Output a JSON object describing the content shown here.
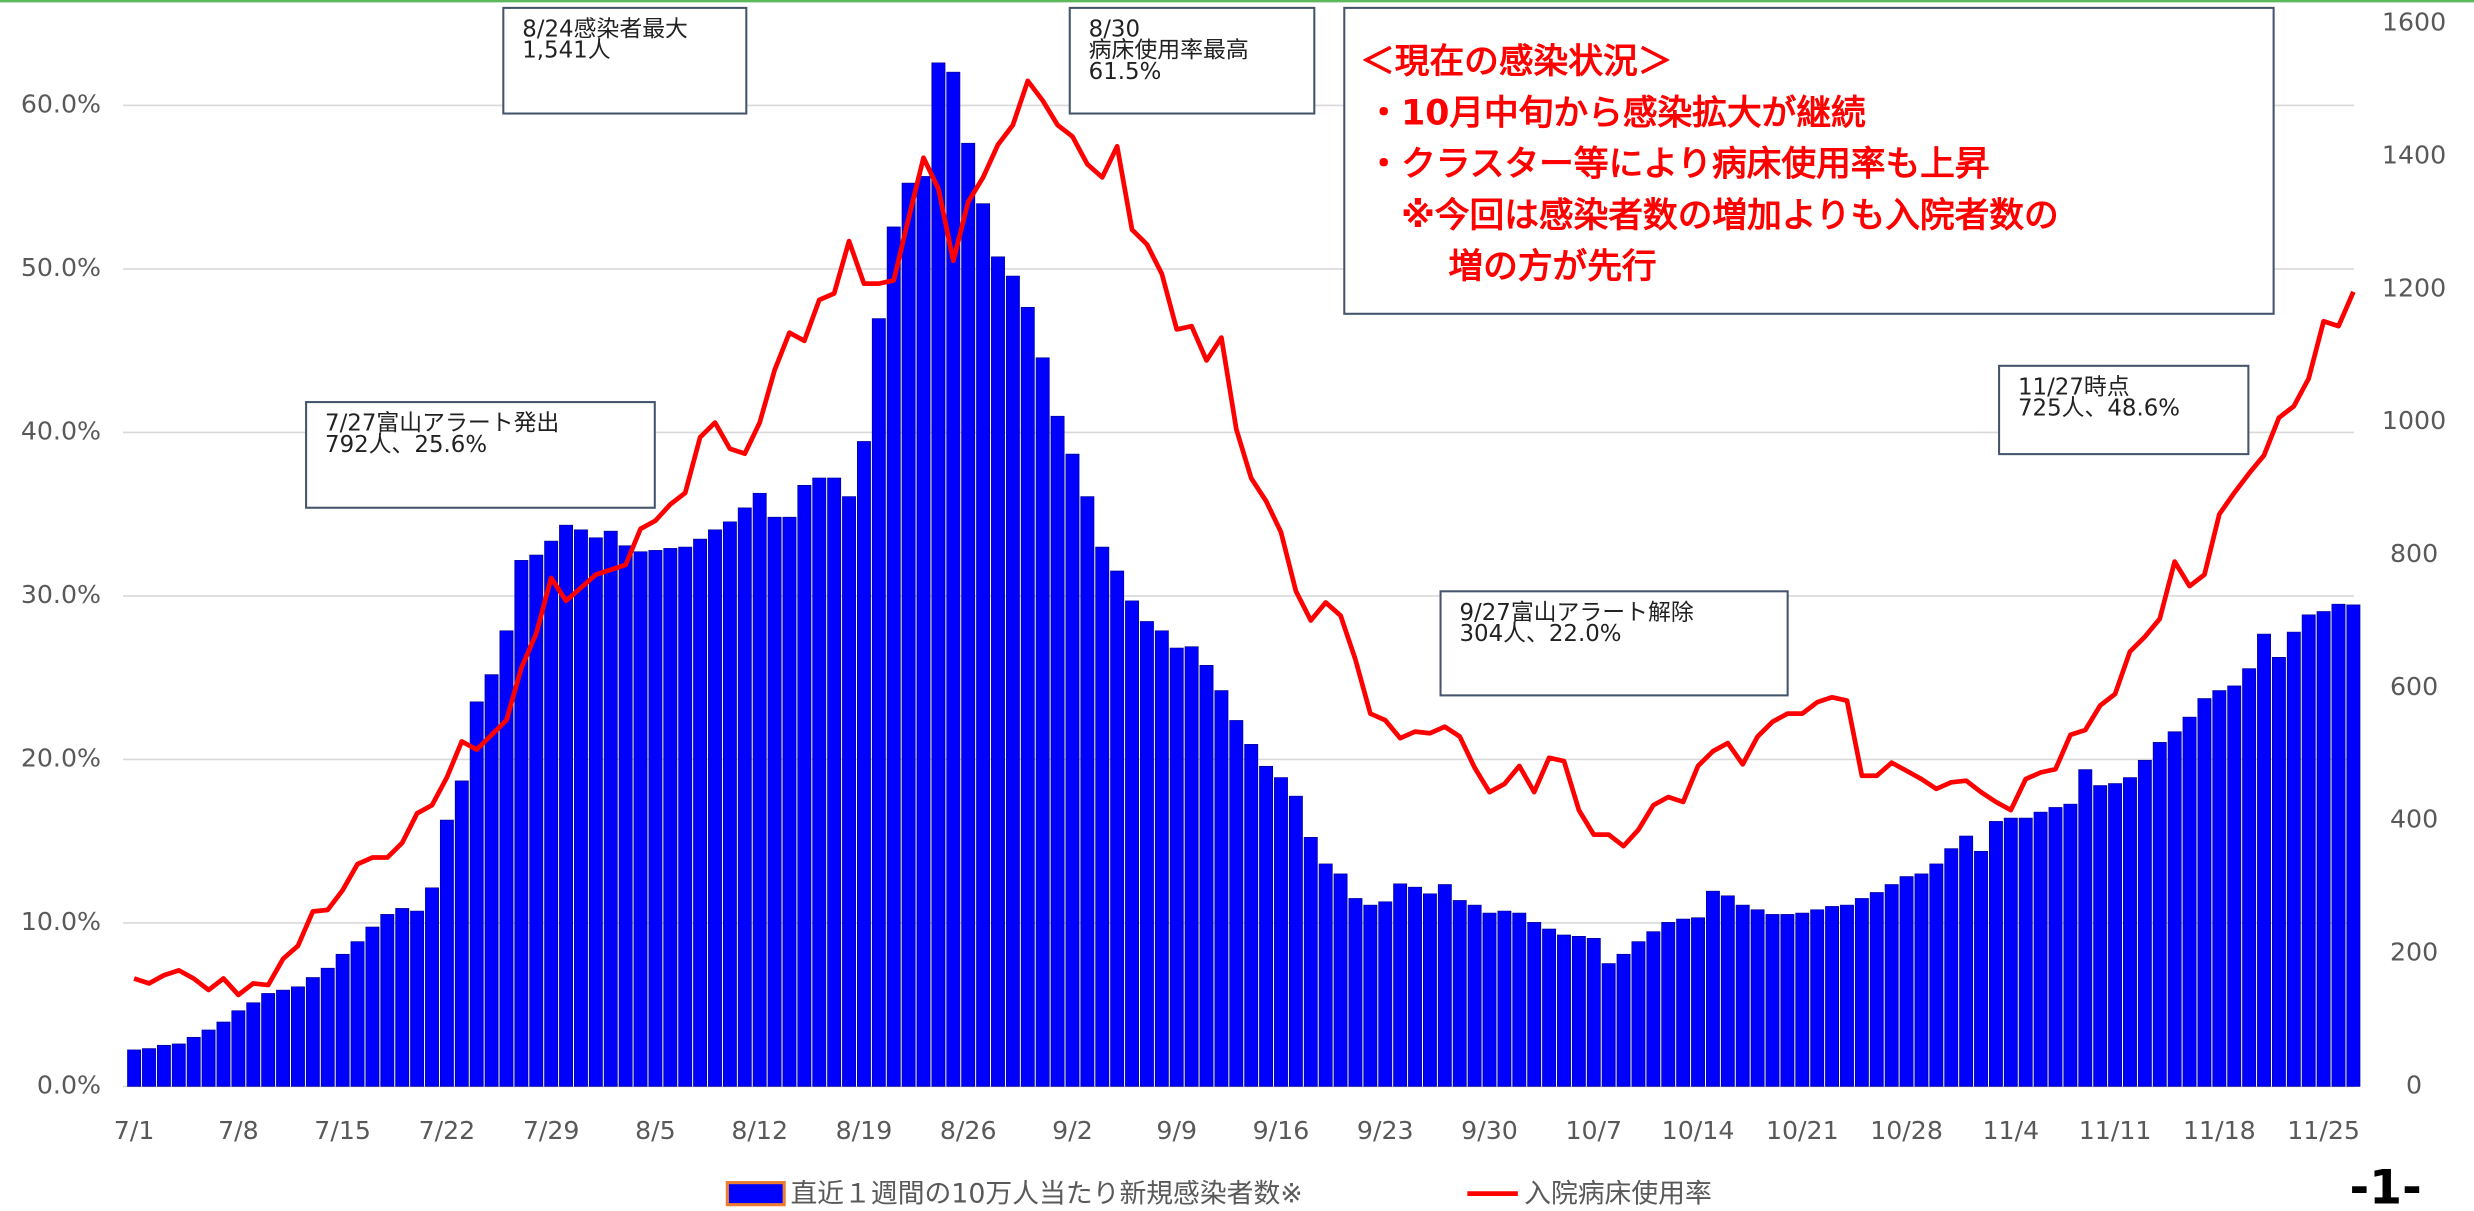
{
  "chart_data": {
    "type": "bar-line",
    "categories": [
      "7/1",
      null,
      null,
      null,
      null,
      null,
      null,
      "7/8",
      null,
      null,
      null,
      null,
      null,
      null,
      "7/15",
      null,
      null,
      null,
      null,
      null,
      null,
      "7/22",
      null,
      null,
      null,
      null,
      null,
      null,
      "7/29",
      null,
      null,
      null,
      null,
      null,
      null,
      "8/5",
      null,
      null,
      null,
      null,
      null,
      null,
      "8/12",
      null,
      null,
      null,
      null,
      null,
      null,
      "8/19",
      null,
      null,
      null,
      null,
      null,
      null,
      "8/26",
      null,
      null,
      null,
      null,
      null,
      null,
      "9/2",
      null,
      null,
      null,
      null,
      null,
      null,
      "9/9",
      null,
      null,
      null,
      null,
      null,
      null,
      "9/16",
      null,
      null,
      null,
      null,
      null,
      null,
      "9/23",
      null,
      null,
      null,
      null,
      null,
      null,
      "9/30",
      null,
      null,
      null,
      null,
      null,
      null,
      "10/7",
      null,
      null,
      null,
      null,
      null,
      null,
      "10/14",
      null,
      null,
      null,
      null,
      null,
      null,
      "10/21",
      null,
      null,
      null,
      null,
      null,
      null,
      "10/28",
      null,
      null,
      null,
      null,
      null,
      null,
      "11/4",
      null,
      null,
      null,
      null,
      null,
      null,
      "11/11",
      null,
      null,
      null,
      null,
      null,
      null,
      "11/18",
      null,
      null,
      null,
      null,
      null,
      null,
      "11/25",
      null,
      null
    ],
    "series": [
      {
        "name": "直近１週間の10万人当たり新規感染者数※",
        "kind": "bar",
        "axis": "y2",
        "color": "#0000ff",
        "values": [
          55,
          57,
          62,
          64,
          74,
          85,
          97,
          114,
          126,
          140,
          145,
          150,
          164,
          178,
          199,
          218,
          240,
          259,
          268,
          264,
          299,
          401,
          460,
          579,
          620,
          686,
          792,
          800,
          821,
          845,
          838,
          826,
          836,
          814,
          805,
          807,
          810,
          812,
          824,
          838,
          850,
          871,
          893,
          857,
          857,
          905,
          916,
          916,
          888,
          971,
          1156,
          1294,
          1360,
          1370,
          1541,
          1527,
          1420,
          1329,
          1249,
          1220,
          1173,
          1097,
          1009,
          952,
          888,
          812,
          776,
          731,
          700,
          686,
          660,
          662,
          634,
          596,
          551,
          515,
          482,
          465,
          437,
          375,
          335,
          320,
          283,
          273,
          278,
          305,
          300,
          290,
          304,
          280,
          273,
          261,
          264,
          261,
          247,
          237,
          228,
          226,
          223,
          185,
          199,
          218,
          233,
          247,
          252,
          254,
          294,
          287,
          273,
          266,
          259,
          259,
          261,
          266,
          271,
          273,
          283,
          292,
          304,
          316,
          320,
          335,
          358,
          377,
          354,
          399,
          404,
          404,
          413,
          420,
          425,
          477,
          453,
          456,
          465,
          491,
          518,
          534,
          556,
          584,
          596,
          603,
          629,
          681,
          646,
          684,
          710,
          715,
          726,
          725
        ]
      },
      {
        "name": "入院病床使用率",
        "kind": "line",
        "axis": "y",
        "color": "#ff0000",
        "values": [
          6.6,
          6.3,
          6.8,
          7.1,
          6.6,
          5.9,
          6.6,
          5.6,
          6.3,
          6.2,
          7.8,
          8.6,
          10.7,
          10.8,
          12.0,
          13.6,
          14.0,
          14.0,
          14.9,
          16.7,
          17.2,
          18.9,
          21.1,
          20.6,
          21.5,
          22.4,
          25.6,
          27.7,
          31.1,
          29.7,
          30.5,
          31.3,
          31.6,
          31.9,
          34.1,
          34.6,
          35.6,
          36.3,
          39.7,
          40.6,
          39.0,
          38.7,
          40.6,
          43.8,
          46.1,
          45.6,
          48.1,
          48.5,
          51.7,
          49.1,
          49.1,
          49.3,
          53.1,
          56.8,
          54.9,
          50.5,
          54.1,
          55.6,
          57.6,
          58.8,
          61.5,
          60.3,
          58.8,
          58.1,
          56.4,
          55.6,
          57.5,
          52.4,
          51.5,
          49.7,
          46.3,
          46.5,
          44.4,
          45.8,
          40.2,
          37.2,
          35.8,
          33.9,
          30.3,
          28.5,
          29.6,
          28.8,
          26.1,
          22.8,
          22.4,
          21.3,
          21.7,
          21.6,
          22.0,
          21.4,
          19.5,
          18.0,
          18.5,
          19.6,
          18.0,
          20.1,
          19.9,
          16.9,
          15.4,
          15.4,
          14.7,
          15.7,
          17.2,
          17.7,
          17.4,
          19.6,
          20.5,
          21.0,
          19.7,
          21.4,
          22.3,
          22.8,
          22.8,
          23.5,
          23.8,
          23.6,
          19.0,
          19.0,
          19.8,
          19.3,
          18.8,
          18.2,
          18.6,
          18.7,
          18.0,
          17.4,
          16.9,
          18.8,
          19.2,
          19.4,
          21.5,
          21.8,
          23.3,
          24.0,
          26.6,
          27.5,
          28.6,
          32.1,
          30.6,
          31.3,
          35.0,
          36.3,
          37.5,
          38.6,
          40.9,
          41.6,
          43.3,
          46.8,
          46.5,
          48.6
        ]
      }
    ],
    "ylim": [
      0,
      65
    ],
    "yticks": [
      {
        "value": 0,
        "label": "0.0%"
      },
      {
        "value": 10,
        "label": "10.0%"
      },
      {
        "value": 20,
        "label": "20.0%"
      },
      {
        "value": 30,
        "label": "30.0%"
      },
      {
        "value": 40,
        "label": "40.0%"
      },
      {
        "value": 50,
        "label": "50.0%"
      },
      {
        "value": 60,
        "label": "60.0%"
      }
    ],
    "y2lim": [
      0,
      1600
    ],
    "y2ticks": [
      0,
      200,
      400,
      600,
      800,
      1000,
      1200,
      1400,
      1600
    ],
    "grid": true,
    "legend": "bottom",
    "annotations": [
      {
        "lines": [
          "8/24感染者最大",
          "1,541人"
        ]
      },
      {
        "lines": [
          "8/30",
          "病床使用率最高",
          "61.5%"
        ]
      },
      {
        "lines": [
          "7/27富山アラート発出",
          "792人、25.6%"
        ]
      },
      {
        "lines": [
          "9/27富山アラート解除",
          "304人、22.0%"
        ]
      },
      {
        "lines": [
          "11/27時点",
          " 725人、48.6%"
        ]
      }
    ],
    "info_box": {
      "lines": [
        "＜現在の感染状況＞",
        "・10月中旬から感染拡大が継続",
        "・クラスター等により病床使用率も上昇",
        "※今回は感染者数の増加よりも入院者数の",
        "増の方が先行"
      ]
    }
  },
  "page_number": "-1-"
}
